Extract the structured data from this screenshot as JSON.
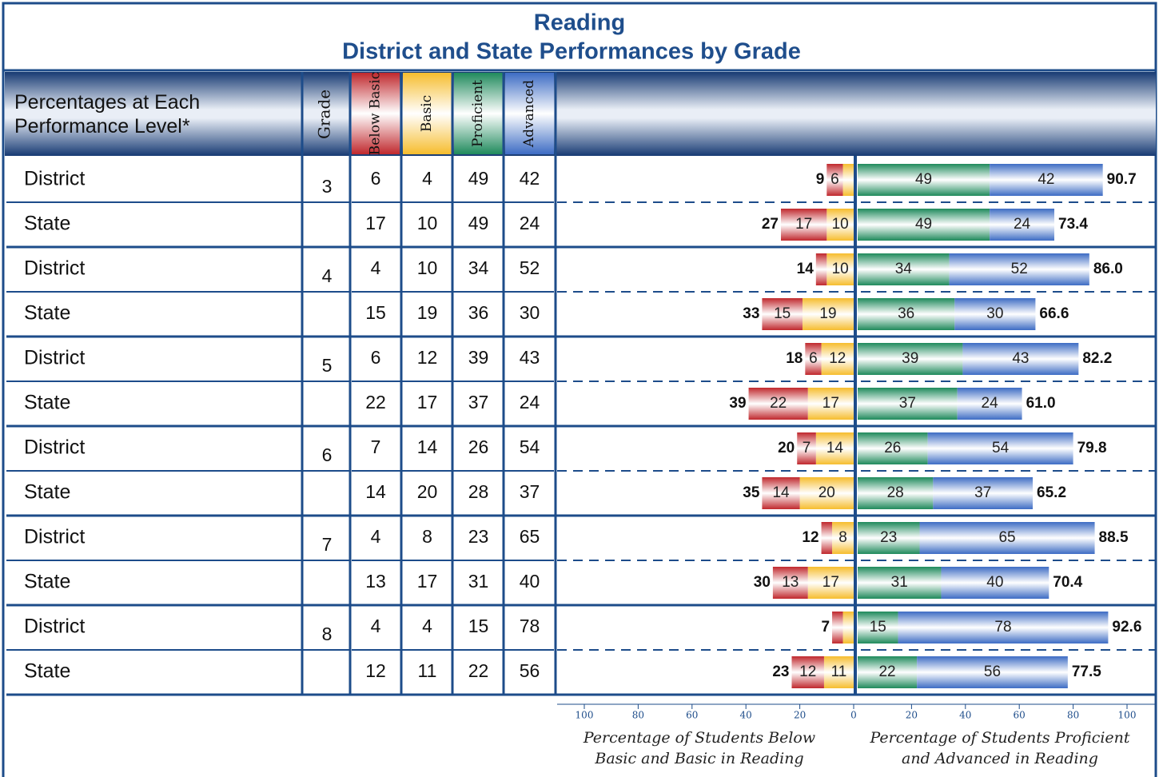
{
  "chart_data": {
    "type": "diverging_bar",
    "title": "Reading",
    "subtitle": "District and State Performances by Grade",
    "header_label": "Percentages at Each Performance Level*",
    "grade_label": "Grade",
    "grades": [
      "3",
      "4",
      "5",
      "6",
      "7",
      "8"
    ],
    "groups": [
      "District",
      "State"
    ],
    "series": [
      {
        "name": "Below Basic",
        "color": "#c0282d",
        "side": "left",
        "values": [
          6,
          17,
          4,
          15,
          6,
          22,
          7,
          14,
          4,
          13,
          4,
          12
        ]
      },
      {
        "name": "Basic",
        "color": "#f6bd2e",
        "side": "left",
        "values": [
          4,
          10,
          10,
          19,
          12,
          17,
          14,
          20,
          8,
          17,
          4,
          11
        ]
      },
      {
        "name": "Proficient",
        "color": "#1f8a5c",
        "side": "right",
        "values": [
          49,
          49,
          34,
          36,
          39,
          37,
          26,
          28,
          23,
          31,
          15,
          22
        ]
      },
      {
        "name": "Advanced",
        "color": "#3d6cc4",
        "side": "right",
        "values": [
          42,
          24,
          52,
          30,
          43,
          24,
          54,
          37,
          65,
          40,
          78,
          56
        ]
      }
    ],
    "below_totals": [
      9,
      27,
      14,
      33,
      18,
      39,
      20,
      35,
      12,
      30,
      7,
      23
    ],
    "above_totals": {
      "values": [
        90.7,
        73.4,
        86,
        66.6,
        82.2,
        61,
        79.8,
        65.2,
        88.5,
        70.4,
        92.6,
        77.5
      ],
      "value_labels": [
        "90.7",
        "73.4",
        "86.0",
        "66.6",
        "82.2",
        "61.0",
        "79.8",
        "65.2",
        "88.5",
        "70.4",
        "92.6",
        "77.5"
      ]
    },
    "xlim": [
      0,
      100
    ],
    "left_xticks": [
      100,
      80,
      60,
      40,
      20,
      0
    ],
    "right_xticks": [
      20,
      40,
      60,
      80,
      100
    ],
    "xlabel_left": "Percentage of Students Below Basic and Basic in Reading",
    "xlabel_right": "Percentage of Students Proficient and Advanced in Reading"
  }
}
